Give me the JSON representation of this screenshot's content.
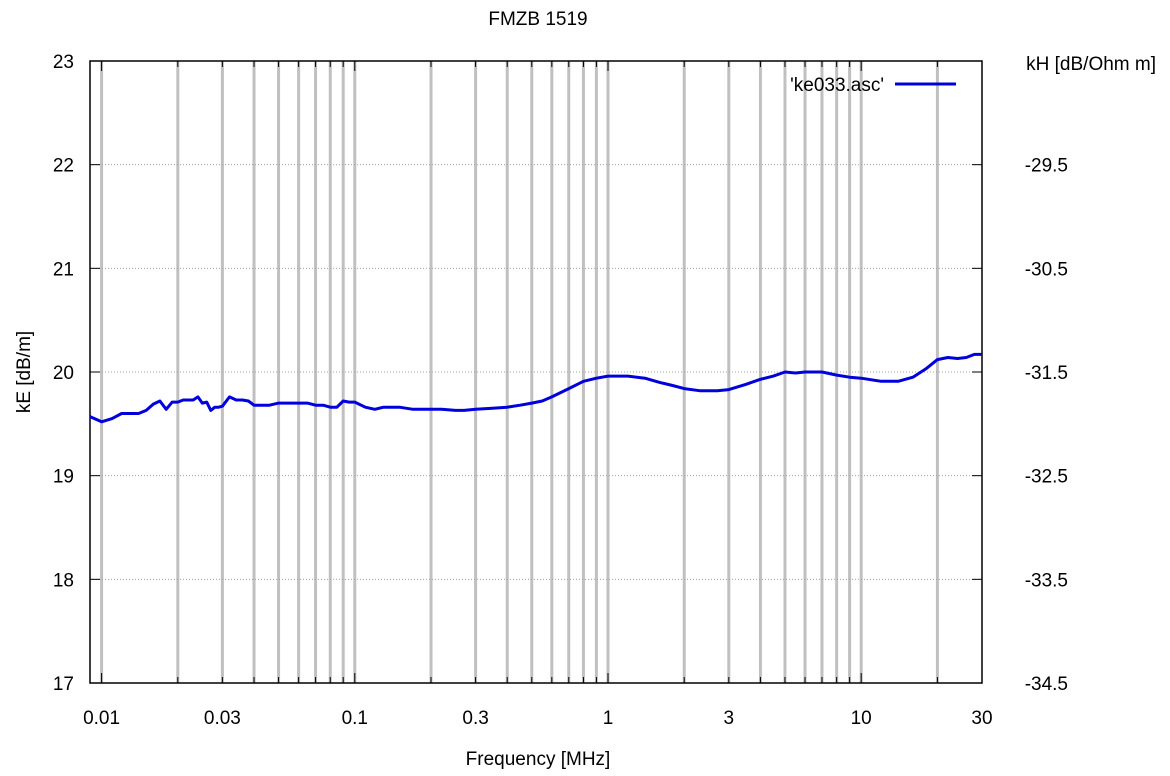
{
  "chart_data": {
    "type": "line",
    "title": "FMZB 1519",
    "xlabel": "Frequency [MHz]",
    "ylabel": "kE [dB/m]",
    "y2label": "kH [dB/Ohm m]",
    "xscale": "log",
    "xlim": [
      0.009,
      30
    ],
    "ylim": [
      17,
      23
    ],
    "y2lim": [
      -28.5,
      -34.5
    ],
    "grid": true,
    "legend_position": "top-right",
    "x_ticks": [
      0.01,
      0.03,
      0.1,
      0.3,
      1,
      3,
      10,
      30
    ],
    "x_tick_labels": [
      "0.01",
      "0.03",
      "0.1",
      "0.3",
      "1",
      "3",
      "10",
      "30"
    ],
    "y_ticks": [
      17,
      18,
      19,
      20,
      21,
      22,
      23
    ],
    "y_tick_labels": [
      "17",
      "18",
      "19",
      "20",
      "21",
      "22",
      "23"
    ],
    "y2_ticks": [
      -34.5,
      -33.5,
      -32.5,
      -31.5,
      -30.5,
      -29.5
    ],
    "y2_tick_labels": [
      "-34.5",
      "-33.5",
      "-32.5",
      "-31.5",
      "-30.5",
      "-29.5"
    ],
    "series": [
      {
        "name": "'ke033.asc'",
        "color": "#0000dd",
        "x": [
          0.009,
          0.01,
          0.011,
          0.012,
          0.013,
          0.014,
          0.015,
          0.016,
          0.017,
          0.018,
          0.019,
          0.02,
          0.021,
          0.022,
          0.023,
          0.024,
          0.025,
          0.026,
          0.027,
          0.028,
          0.029,
          0.03,
          0.032,
          0.034,
          0.036,
          0.038,
          0.04,
          0.043,
          0.046,
          0.05,
          0.055,
          0.06,
          0.065,
          0.07,
          0.075,
          0.08,
          0.085,
          0.09,
          0.095,
          0.1,
          0.11,
          0.12,
          0.13,
          0.15,
          0.17,
          0.2,
          0.22,
          0.25,
          0.27,
          0.3,
          0.35,
          0.4,
          0.45,
          0.5,
          0.55,
          0.6,
          0.7,
          0.8,
          0.9,
          1.0,
          1.2,
          1.4,
          1.6,
          1.8,
          2.0,
          2.3,
          2.7,
          3.0,
          3.5,
          4.0,
          4.5,
          5.0,
          5.5,
          6.0,
          7.0,
          8.0,
          9.0,
          10,
          12,
          14,
          16,
          18,
          20,
          22,
          24,
          26,
          28,
          30
        ],
        "y": [
          19.57,
          19.52,
          19.55,
          19.6,
          19.6,
          19.6,
          19.63,
          19.69,
          19.72,
          19.64,
          19.71,
          19.71,
          19.73,
          19.73,
          19.73,
          19.76,
          19.7,
          19.71,
          19.63,
          19.66,
          19.66,
          19.67,
          19.76,
          19.73,
          19.73,
          19.72,
          19.68,
          19.68,
          19.68,
          19.7,
          19.7,
          19.7,
          19.7,
          19.68,
          19.68,
          19.66,
          19.66,
          19.72,
          19.71,
          19.71,
          19.66,
          19.64,
          19.66,
          19.66,
          19.64,
          19.64,
          19.64,
          19.63,
          19.63,
          19.64,
          19.65,
          19.66,
          19.68,
          19.7,
          19.72,
          19.76,
          19.84,
          19.91,
          19.94,
          19.96,
          19.96,
          19.94,
          19.9,
          19.87,
          19.84,
          19.82,
          19.82,
          19.83,
          19.88,
          19.93,
          19.96,
          20.0,
          19.99,
          20.0,
          20.0,
          19.97,
          19.95,
          19.94,
          19.91,
          19.91,
          19.95,
          20.03,
          20.12,
          20.14,
          20.13,
          20.14,
          20.17,
          20.17
        ]
      }
    ]
  }
}
